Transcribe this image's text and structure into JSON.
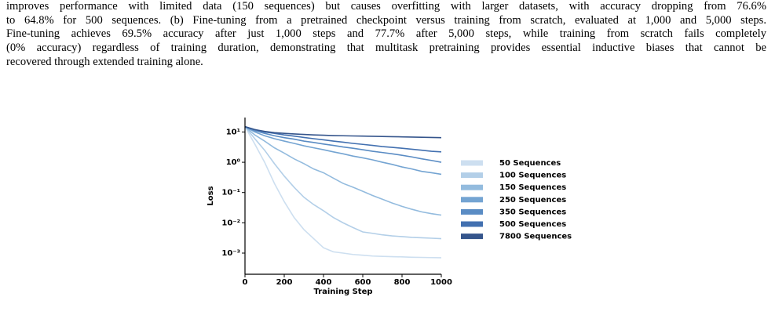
{
  "body": {
    "lines": [
      "improves performance with limited data (150 sequences) but causes overfitting with larger datasets, with accuracy dropping from 76.6%",
      "to 64.8% for 500 sequences. (b) Fine-tuning from a pretrained checkpoint versus training from scratch, evaluated at 1,000 and 5,000 steps.",
      "Fine-tuning achieves 69.5% accuracy after just 1,000 steps and 77.7% after 5,000 steps, while training from scratch fails completely",
      "(0% accuracy) regardless of training duration, demonstrating that multitask pretraining provides essential inductive biases that cannot be",
      "recovered through extended training alone."
    ]
  },
  "chart_data": {
    "type": "line",
    "x_label": "Training Step",
    "y_label": "Loss",
    "y_scale": "log",
    "legend": "right",
    "x": [
      0,
      50,
      100,
      150,
      200,
      250,
      300,
      350,
      400,
      450,
      500,
      550,
      600,
      650,
      700,
      750,
      800,
      850,
      900,
      950,
      1000
    ],
    "xlim": [
      0,
      1000
    ],
    "xticks": [
      0,
      200,
      400,
      600,
      800,
      1000
    ],
    "ylim": [
      0.0002,
      30
    ],
    "yticks": [
      {
        "value": 10,
        "label": "10¹"
      },
      {
        "value": 1,
        "label": "10⁰"
      },
      {
        "value": 0.1,
        "label": "10⁻¹"
      },
      {
        "value": 0.01,
        "label": "10⁻²"
      },
      {
        "value": 0.001,
        "label": "10⁻³"
      }
    ],
    "series": [
      {
        "name": "50 Sequences",
        "color": "#cddff0",
        "values": [
          15,
          4,
          1.0,
          0.2,
          0.05,
          0.015,
          0.006,
          0.003,
          0.0015,
          0.0011,
          0.001,
          0.0009,
          0.00085,
          0.0008,
          0.00078,
          0.00076,
          0.00075,
          0.00073,
          0.00072,
          0.00071,
          0.0007
        ]
      },
      {
        "name": "100 Sequences",
        "color": "#b3cfe8",
        "values": [
          15,
          6,
          2.5,
          0.9,
          0.35,
          0.15,
          0.07,
          0.04,
          0.025,
          0.015,
          0.01,
          0.007,
          0.005,
          0.0045,
          0.004,
          0.0037,
          0.0035,
          0.0033,
          0.0032,
          0.0031,
          0.003
        ]
      },
      {
        "name": "150 Sequences",
        "color": "#93bbde",
        "values": [
          15,
          8,
          5,
          3,
          2,
          1.3,
          0.9,
          0.6,
          0.45,
          0.3,
          0.2,
          0.15,
          0.11,
          0.08,
          0.06,
          0.045,
          0.035,
          0.028,
          0.023,
          0.02,
          0.018
        ]
      },
      {
        "name": "250 Sequences",
        "color": "#74a4d2",
        "values": [
          15,
          10,
          7.5,
          6,
          5,
          4.2,
          3.5,
          3,
          2.6,
          2.2,
          1.9,
          1.6,
          1.4,
          1.2,
          1.0,
          0.85,
          0.7,
          0.6,
          0.5,
          0.45,
          0.4
        ]
      },
      {
        "name": "350 Sequences",
        "color": "#5a8cc4",
        "values": [
          15,
          11,
          9,
          7.5,
          6.5,
          5.8,
          5,
          4.5,
          4,
          3.6,
          3.2,
          2.9,
          2.6,
          2.3,
          2.1,
          1.9,
          1.7,
          1.5,
          1.3,
          1.15,
          1.0
        ]
      },
      {
        "name": "500 Sequences",
        "color": "#4270b0",
        "values": [
          15,
          12,
          10,
          9,
          8,
          7.3,
          6.6,
          6,
          5.5,
          5,
          4.6,
          4.2,
          3.9,
          3.6,
          3.3,
          3.1,
          2.9,
          2.7,
          2.5,
          2.3,
          2.2
        ]
      },
      {
        "name": "7800 Sequences",
        "color": "#35558c",
        "values": [
          15,
          12,
          10.5,
          9.5,
          9,
          8.6,
          8.3,
          8,
          7.8,
          7.6,
          7.5,
          7.4,
          7.3,
          7.2,
          7.1,
          7,
          6.9,
          6.8,
          6.7,
          6.6,
          6.5
        ]
      }
    ]
  }
}
